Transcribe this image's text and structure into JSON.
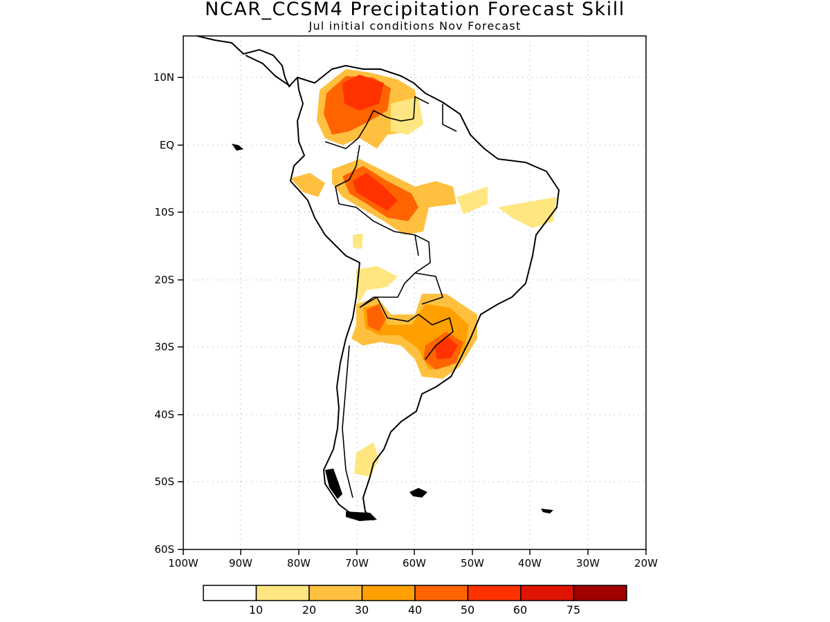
{
  "header": {
    "title": "NCAR_CCSM4 Precipitation Forecast Skill",
    "subtitle": "Jul initial conditions   Nov Forecast"
  },
  "map": {
    "lat_ticks": [
      "10N",
      "EQ",
      "10S",
      "20S",
      "30S",
      "40S",
      "50S",
      "60S"
    ],
    "lon_ticks": [
      "100W",
      "90W",
      "80W",
      "70W",
      "60W",
      "50W",
      "40W",
      "30W",
      "20W"
    ],
    "land_outline_color": "#000000",
    "gridline_color": "#9a9a9a"
  },
  "colorbar": {
    "colors": [
      "#ffffff",
      "#ffe680",
      "#ffc040",
      "#ffa000",
      "#ff6400",
      "#ff3200",
      "#e01400",
      "#a00000"
    ],
    "labels": [
      "10",
      "20",
      "30",
      "40",
      "50",
      "60",
      "75"
    ]
  }
}
